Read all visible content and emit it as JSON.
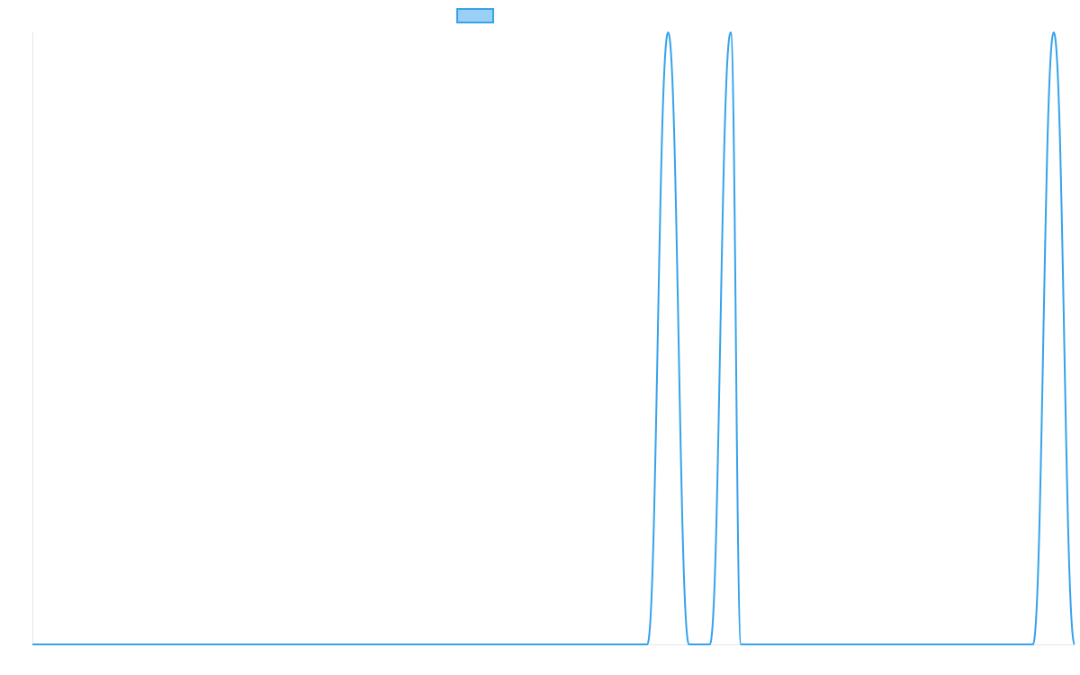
{
  "chart_data": {
    "type": "line",
    "title": "",
    "xlabel": "",
    "ylabel": "",
    "grid": false,
    "legend_position": "top",
    "ylim": [
      0,
      1
    ],
    "series": [
      {
        "name": "",
        "color": "#36a2eb",
        "legend_fill": "#9ad0f5",
        "x": [
          0,
          59,
          61,
          63,
          65,
          67,
          68,
          70,
          72,
          74,
          96,
          98,
          100
        ],
        "y": [
          0,
          0,
          1,
          0,
          0,
          1,
          0,
          0,
          0,
          0,
          0,
          1,
          0
        ]
      }
    ]
  }
}
